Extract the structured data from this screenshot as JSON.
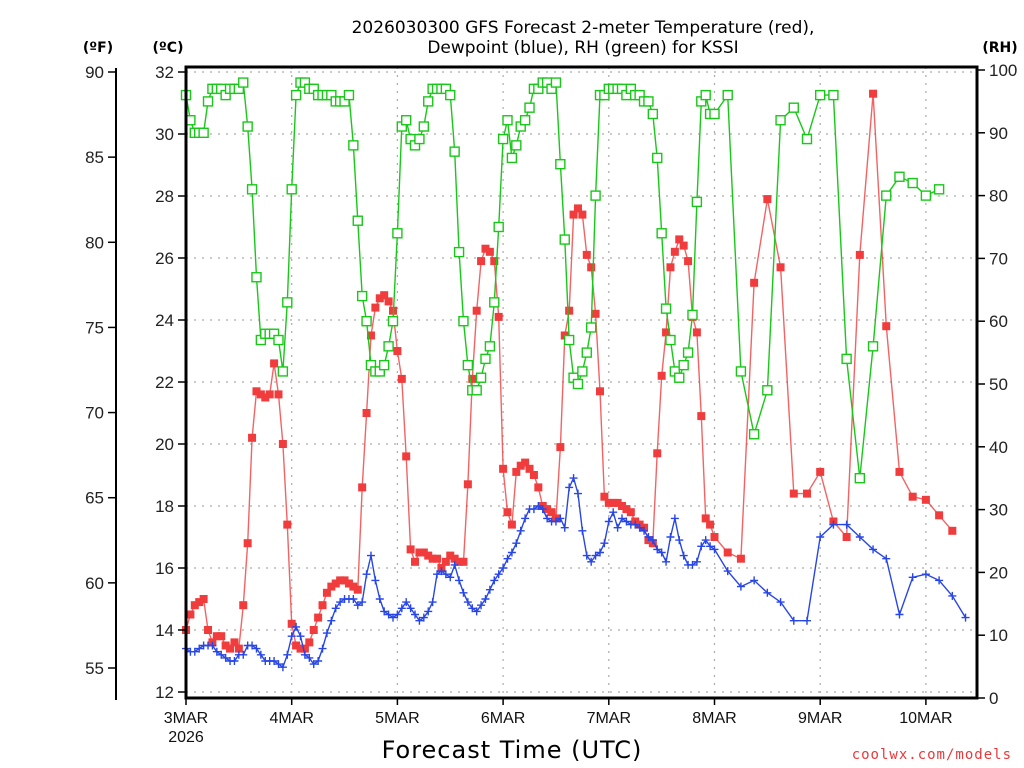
{
  "chart_data": {
    "type": "line",
    "title_line1": "2026030300 GFS Forecast 2-meter Temperature (red),",
    "title_line2": "Dewpoint (blue), RH (green) for KSSI",
    "xlabel": "Forecast Time (UTC)",
    "left_outer_axis": {
      "label": "(ºF)",
      "ticks": [
        55,
        60,
        65,
        70,
        75,
        80,
        85,
        90
      ]
    },
    "left_inner_axis": {
      "label": "(ºC)",
      "ticks": [
        12,
        14,
        16,
        18,
        20,
        22,
        24,
        26,
        28,
        30,
        32
      ],
      "range": [
        12,
        32
      ]
    },
    "right_axis": {
      "label": "(RH)",
      "ticks": [
        0,
        10,
        20,
        30,
        40,
        50,
        60,
        70,
        80,
        90,
        100
      ],
      "range": [
        0,
        100
      ]
    },
    "x_tick_labels": [
      "3MAR",
      "4MAR",
      "5MAR",
      "6MAR",
      "7MAR",
      "8MAR",
      "9MAR",
      "10MAR"
    ],
    "x_year_label": "2026",
    "x_range_hours": [
      0,
      180
    ],
    "grid": true,
    "watermark": "coolwx.com/models",
    "series_colors": {
      "temperature": "#f03c3c",
      "dewpoint": "#2846e6",
      "rh": "#18c818"
    },
    "hours": [
      0,
      1,
      2,
      3,
      4,
      5,
      6,
      7,
      8,
      9,
      10,
      11,
      12,
      13,
      14,
      15,
      16,
      17,
      18,
      19,
      20,
      21,
      22,
      23,
      24,
      25,
      26,
      27,
      28,
      29,
      30,
      31,
      32,
      33,
      34,
      35,
      36,
      37,
      38,
      39,
      40,
      41,
      42,
      43,
      44,
      45,
      46,
      47,
      48,
      49,
      50,
      51,
      52,
      53,
      54,
      55,
      56,
      57,
      58,
      59,
      60,
      61,
      62,
      63,
      64,
      65,
      66,
      67,
      68,
      69,
      70,
      71,
      72,
      73,
      74,
      75,
      76,
      77,
      78,
      79,
      80,
      81,
      82,
      83,
      84,
      85,
      86,
      87,
      88,
      89,
      90,
      91,
      92,
      93,
      94,
      95,
      96,
      97,
      98,
      99,
      100,
      101,
      102,
      103,
      104,
      105,
      106,
      107,
      108,
      109,
      110,
      111,
      112,
      113,
      114,
      115,
      116,
      117,
      118,
      119,
      120,
      123,
      126,
      129,
      132,
      135,
      138,
      141,
      144,
      147,
      150,
      153,
      156,
      159,
      162,
      165,
      168,
      171,
      174,
      177,
      180
    ],
    "series": [
      {
        "name": "Temperature (°C)",
        "key": "temperature",
        "values": [
          14.0,
          14.5,
          14.8,
          14.9,
          15.0,
          14.0,
          13.6,
          13.8,
          13.8,
          13.5,
          13.4,
          13.6,
          13.4,
          14.8,
          16.8,
          20.2,
          21.7,
          21.6,
          21.5,
          21.6,
          22.6,
          21.6,
          20.0,
          17.4,
          14.2,
          13.5,
          13.4,
          13.4,
          13.6,
          14.0,
          14.4,
          14.8,
          15.2,
          15.4,
          15.5,
          15.6,
          15.6,
          15.5,
          15.4,
          15.3,
          18.6,
          21.0,
          23.5,
          24.4,
          24.7,
          24.8,
          24.6,
          24.3,
          23.0,
          22.1,
          19.6,
          16.6,
          16.2,
          16.5,
          16.5,
          16.4,
          16.3,
          16.3,
          16.0,
          16.2,
          16.4,
          16.3,
          16.2,
          16.2,
          18.7,
          22.1,
          24.3,
          25.9,
          26.3,
          26.2,
          25.9,
          24.1,
          19.2,
          17.8,
          17.4,
          19.1,
          19.3,
          19.4,
          19.2,
          19.0,
          18.6,
          18.0,
          17.9,
          17.8,
          17.6,
          19.9,
          23.5,
          24.3,
          27.4,
          27.6,
          27.4,
          26.1,
          25.7,
          24.2,
          21.7,
          18.3,
          18.1,
          18.1,
          18.1,
          18.0,
          17.9,
          17.8,
          17.5,
          17.4,
          17.3,
          16.9,
          16.8,
          19.7,
          22.2,
          23.6,
          25.7,
          26.2,
          26.6,
          26.4,
          25.9,
          24.1,
          23.6,
          20.9,
          17.6,
          17.4,
          17.0,
          16.5,
          16.3,
          25.2,
          27.9,
          25.7,
          18.4,
          18.4,
          19.1,
          17.5,
          17.0,
          26.1,
          31.3,
          23.8,
          19.1,
          18.3,
          18.2,
          17.7,
          17.2
        ]
      },
      {
        "name": "Dewpoint (°C)",
        "key": "dewpoint",
        "values": [
          13.4,
          13.3,
          13.3,
          13.4,
          13.5,
          13.5,
          13.5,
          13.3,
          13.2,
          13.1,
          13.0,
          13.0,
          13.2,
          13.2,
          13.5,
          13.5,
          13.4,
          13.2,
          13.0,
          13.0,
          13.0,
          12.9,
          12.8,
          13.2,
          13.8,
          14.1,
          13.8,
          13.2,
          13.1,
          12.9,
          13.0,
          13.4,
          13.9,
          14.3,
          14.7,
          14.9,
          15.0,
          15.0,
          15.0,
          14.8,
          14.9,
          15.8,
          16.4,
          15.6,
          15.0,
          14.6,
          14.5,
          14.4,
          14.5,
          14.7,
          14.9,
          14.7,
          14.5,
          14.3,
          14.4,
          14.6,
          14.9,
          15.8,
          15.9,
          15.8,
          15.7,
          16.1,
          15.6,
          15.2,
          14.9,
          14.7,
          14.6,
          14.8,
          15.0,
          15.3,
          15.6,
          15.8,
          16.0,
          16.3,
          16.5,
          16.8,
          17.2,
          17.6,
          17.9,
          17.9,
          18.0,
          17.9,
          17.6,
          17.5,
          17.5,
          17.6,
          17.3,
          18.6,
          18.9,
          18.4,
          17.2,
          16.4,
          16.2,
          16.4,
          16.5,
          16.8,
          17.5,
          17.8,
          17.3,
          17.6,
          17.5,
          17.4,
          17.4,
          17.3,
          17.2,
          17.0,
          16.9,
          16.6,
          16.5,
          16.2,
          17.0,
          17.6,
          16.9,
          16.4,
          16.1,
          16.1,
          16.2,
          16.7,
          16.9,
          16.7,
          16.6,
          15.9,
          15.4,
          15.6,
          15.2,
          14.9,
          14.3,
          14.3,
          17.0,
          17.4,
          17.4,
          17.0,
          16.6,
          16.3,
          14.5,
          15.7,
          15.8,
          15.6,
          15.1,
          14.4
        ]
      },
      {
        "name": "RH (%)",
        "key": "rh",
        "values": [
          96,
          92,
          90,
          90,
          90,
          95,
          97,
          97,
          97,
          96,
          97,
          97,
          97,
          98,
          91,
          81,
          67,
          57,
          58,
          58,
          58,
          57,
          52,
          63,
          81,
          96,
          98,
          98,
          97,
          97,
          96,
          96,
          96,
          96,
          95,
          95,
          95,
          96,
          88,
          76,
          64,
          60,
          53,
          52,
          52,
          53,
          56,
          60,
          74,
          91,
          92,
          89,
          88,
          89,
          91,
          95,
          97,
          97,
          97,
          97,
          96,
          87,
          71,
          60,
          53,
          49,
          49,
          51,
          54,
          56,
          63,
          75,
          89,
          92,
          86,
          88,
          91,
          92,
          94,
          97,
          97,
          98,
          98,
          97,
          98,
          85,
          73,
          57,
          51,
          50,
          52,
          55,
          59,
          80,
          96,
          96,
          97,
          97,
          97,
          97,
          96,
          97,
          96,
          96,
          95,
          95,
          93,
          86,
          74,
          62,
          57,
          52,
          51,
          53,
          55,
          61,
          79,
          95,
          96,
          93,
          93,
          96,
          52,
          42,
          49,
          92,
          94,
          89,
          96,
          96,
          54,
          35,
          56,
          80,
          83,
          82,
          80,
          81
        ]
      }
    ]
  }
}
